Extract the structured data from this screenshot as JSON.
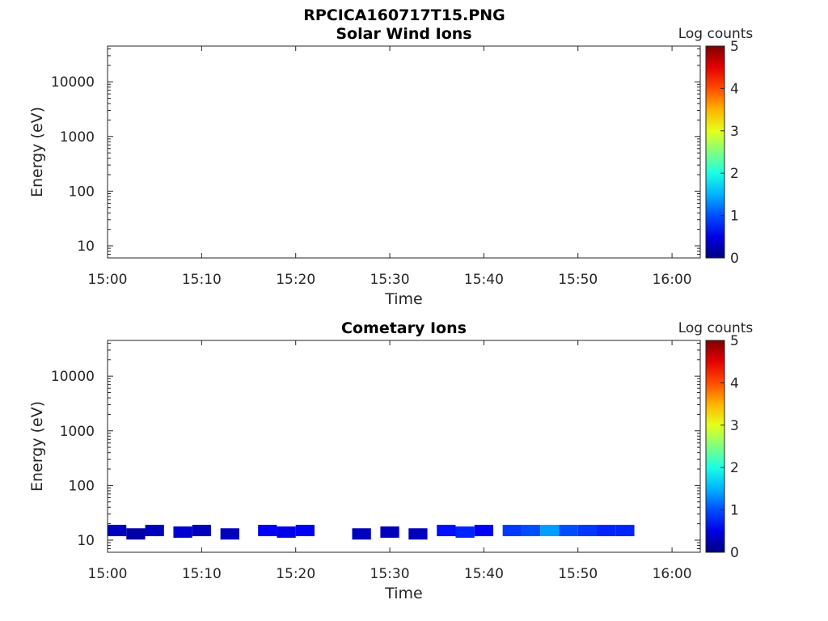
{
  "figure_title": "RPCICA160717T15.PNG",
  "chart_data": [
    {
      "type": "heatmap",
      "title": "Solar Wind Ions",
      "xlabel": "Time",
      "ylabel": "Energy (eV)",
      "x_ticks": [
        "15:00",
        "15:10",
        "15:20",
        "15:30",
        "15:40",
        "15:50",
        "16:00"
      ],
      "xlim": [
        "15:00",
        "16:03"
      ],
      "y_scale": "log",
      "y_ticks": [
        10,
        100,
        1000,
        10000
      ],
      "ylim": [
        6,
        45000
      ],
      "colorbar": {
        "label": "Log counts",
        "ticks": [
          0,
          1,
          2,
          3,
          4,
          5
        ],
        "range": [
          0,
          5
        ],
        "colormap": "jet"
      },
      "cells": []
    },
    {
      "type": "heatmap",
      "title": "Cometary Ions",
      "xlabel": "Time",
      "ylabel": "Energy (eV)",
      "x_ticks": [
        "15:00",
        "15:10",
        "15:20",
        "15:30",
        "15:40",
        "15:50",
        "16:00"
      ],
      "xlim": [
        "15:00",
        "16:03"
      ],
      "y_scale": "log",
      "y_ticks": [
        10,
        100,
        1000,
        10000
      ],
      "ylim": [
        6,
        45000
      ],
      "colorbar": {
        "label": "Log counts",
        "ticks": [
          0,
          1,
          2,
          3,
          4,
          5
        ],
        "range": [
          0,
          5
        ],
        "colormap": "jet"
      },
      "cells": [
        {
          "t": "15:00",
          "e": 15,
          "v": 0.3
        },
        {
          "t": "15:02",
          "e": 13,
          "v": 0.2
        },
        {
          "t": "15:04",
          "e": 15,
          "v": 0.3
        },
        {
          "t": "15:07",
          "e": 14,
          "v": 0.4
        },
        {
          "t": "15:09",
          "e": 15,
          "v": 0.3
        },
        {
          "t": "15:12",
          "e": 13,
          "v": 0.3
        },
        {
          "t": "15:16",
          "e": 15,
          "v": 0.6
        },
        {
          "t": "15:18",
          "e": 14,
          "v": 0.5
        },
        {
          "t": "15:20",
          "e": 15,
          "v": 0.6
        },
        {
          "t": "15:26",
          "e": 13,
          "v": 0.3
        },
        {
          "t": "15:29",
          "e": 14,
          "v": 0.3
        },
        {
          "t": "15:32",
          "e": 13,
          "v": 0.3
        },
        {
          "t": "15:35",
          "e": 15,
          "v": 0.7
        },
        {
          "t": "15:37",
          "e": 14,
          "v": 0.8
        },
        {
          "t": "15:39",
          "e": 15,
          "v": 0.6
        },
        {
          "t": "15:42",
          "e": 15,
          "v": 0.9
        },
        {
          "t": "15:44",
          "e": 15,
          "v": 1.0
        },
        {
          "t": "15:46",
          "e": 15,
          "v": 1.4
        },
        {
          "t": "15:48",
          "e": 15,
          "v": 1.0
        },
        {
          "t": "15:50",
          "e": 15,
          "v": 0.9
        },
        {
          "t": "15:52",
          "e": 15,
          "v": 0.8
        },
        {
          "t": "15:54",
          "e": 15,
          "v": 0.8
        }
      ]
    }
  ]
}
